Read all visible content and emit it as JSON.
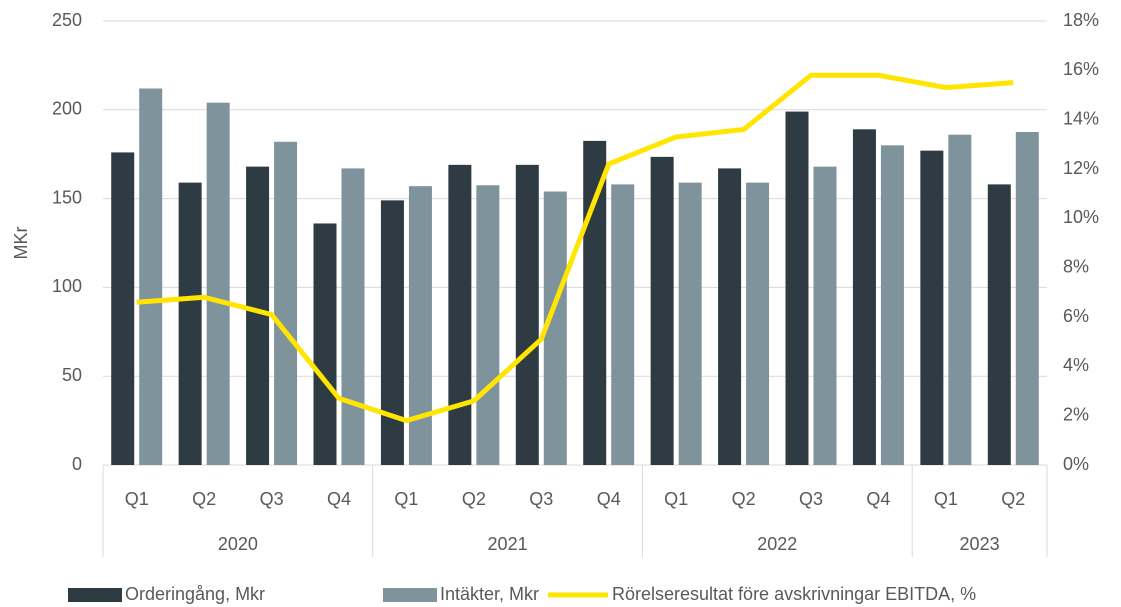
{
  "chart_data": {
    "type": "bar_line",
    "y_label": "MKr",
    "categories": [
      "Q1",
      "Q2",
      "Q3",
      "Q4",
      "Q1",
      "Q2",
      "Q3",
      "Q4",
      "Q1",
      "Q2",
      "Q3",
      "Q4",
      "Q1",
      "Q2"
    ],
    "category_groups": [
      {
        "name": "2020",
        "size": 4
      },
      {
        "name": "2021",
        "size": 4
      },
      {
        "name": "2022",
        "size": 4
      },
      {
        "name": "2023",
        "size": 2
      }
    ],
    "series": [
      {
        "name": "Orderingång, Mkr",
        "color": "#2e3b42",
        "kind": "bar",
        "values": [
          176,
          159,
          168,
          136,
          149,
          169,
          169,
          182.5,
          173.5,
          167,
          199,
          189,
          177,
          158
        ]
      },
      {
        "name": "Intäkter, Mkr",
        "color": "#7f939d",
        "kind": "bar",
        "values": [
          212,
          204,
          182,
          167,
          157,
          157.5,
          154,
          158,
          159,
          159,
          168,
          180,
          186,
          187.5
        ]
      },
      {
        "name": "Rörelseresultat före avskrivningar EBITDA, %",
        "color": "#ffe500",
        "kind": "line",
        "axis": "y2",
        "values": [
          6.6,
          6.8,
          6.1,
          2.7,
          1.8,
          2.6,
          5.1,
          12.2,
          13.3,
          13.6,
          15.8,
          15.8,
          15.3,
          15.5
        ]
      }
    ],
    "ylim": [
      0,
      250
    ],
    "yticks": [
      0,
      50,
      100,
      150,
      200,
      250
    ],
    "y2lim": [
      0,
      18
    ],
    "y2ticks": [
      {
        "value": 0,
        "label": "0%"
      },
      {
        "value": 2,
        "label": "2%"
      },
      {
        "value": 4,
        "label": "4%"
      },
      {
        "value": 6,
        "label": "6%"
      },
      {
        "value": 8,
        "label": "8%"
      },
      {
        "value": 10,
        "label": "10%"
      },
      {
        "value": 12,
        "label": "12%"
      },
      {
        "value": 14,
        "label": "14%"
      },
      {
        "value": 16,
        "label": "16%"
      },
      {
        "value": 18,
        "label": "18%"
      }
    ],
    "grid": true
  }
}
